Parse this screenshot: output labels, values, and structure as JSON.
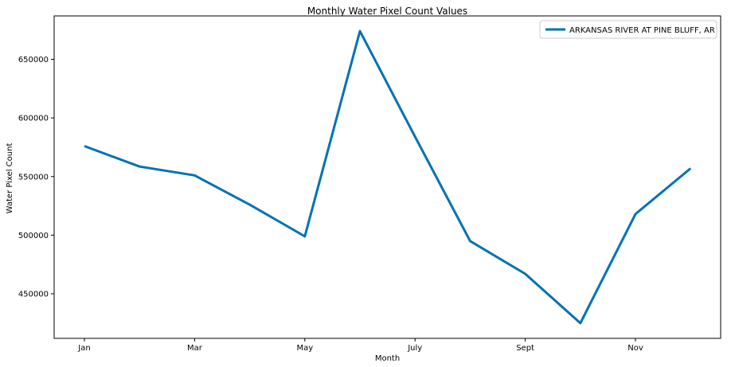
{
  "chart_data": {
    "type": "line",
    "title": "Monthly Water Pixel Count Values",
    "xlabel": "Month",
    "ylabel": "Water Pixel Count",
    "x_tick_labels": [
      "Jan",
      "Mar",
      "May",
      "July",
      "Sept",
      "Nov"
    ],
    "y_ticks": [
      450000,
      500000,
      550000,
      600000,
      650000
    ],
    "y_tick_labels": [
      "450000",
      "500000",
      "550000",
      "600000",
      "650000"
    ],
    "ylim": [
      412000,
      687000
    ],
    "months": [
      "Jan",
      "Feb",
      "Mar",
      "Apr",
      "May",
      "Jun",
      "Jul",
      "Aug",
      "Sep",
      "Oct",
      "Nov",
      "Dec"
    ],
    "series": [
      {
        "name": "ARKANSAS RIVER AT PINE BLUFF, AR",
        "color": "#0072b2",
        "values": [
          576000,
          558500,
          551000,
          526000,
          499000,
          674000,
          584000,
          495000,
          467000,
          425000,
          518000,
          557000
        ]
      }
    ],
    "legend_position": "top-right",
    "grid": false
  }
}
